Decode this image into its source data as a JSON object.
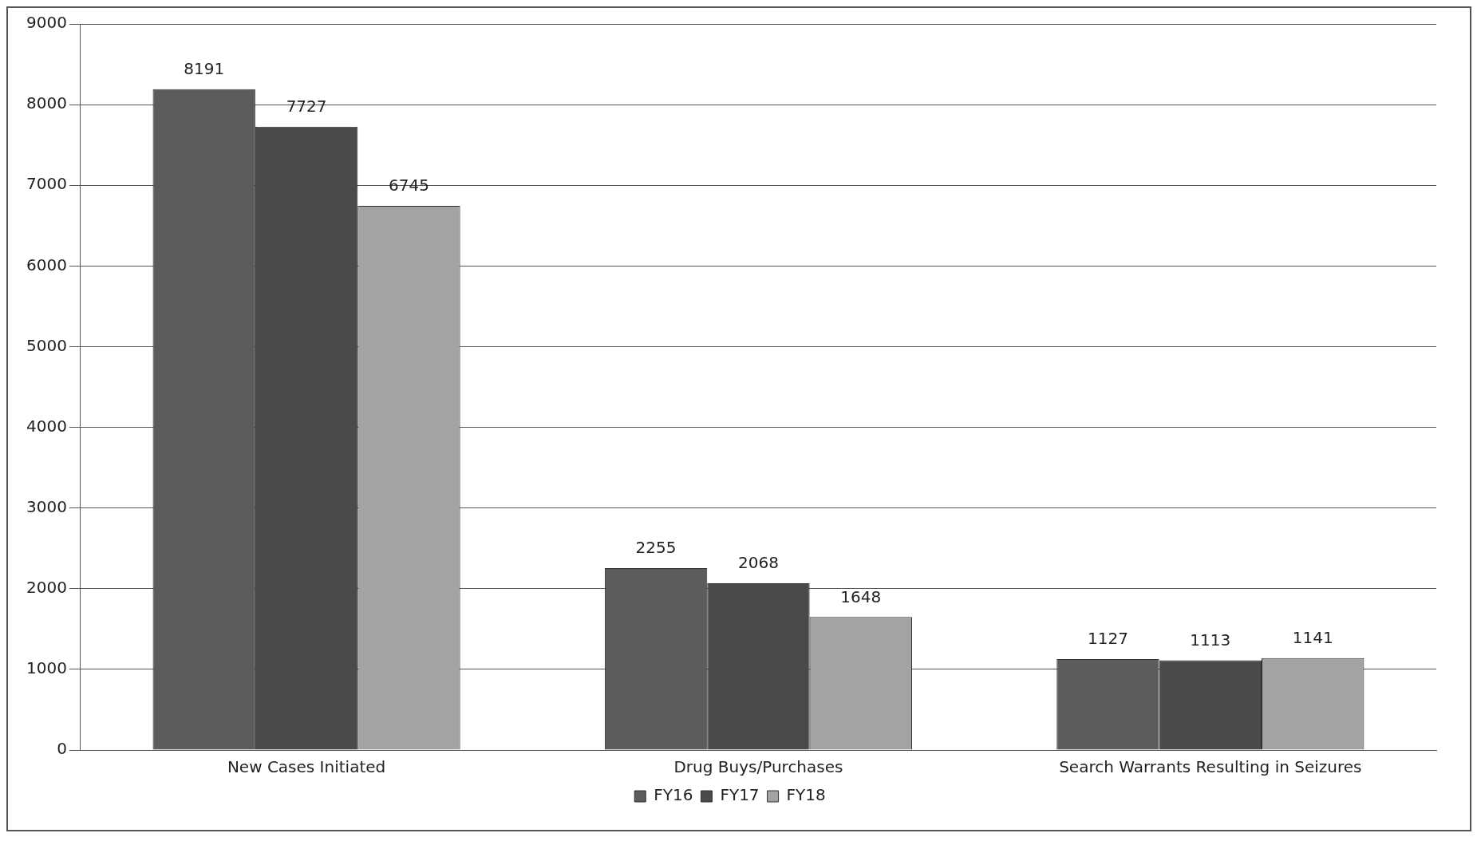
{
  "chart_data": {
    "type": "bar",
    "categories": [
      "New Cases Initiated",
      "Drug Buys/Purchases",
      "Search Warrants Resulting in Seizures"
    ],
    "series": [
      {
        "name": "FY16",
        "color": "#5c5c5c",
        "values": [
          8191,
          2255,
          1127
        ]
      },
      {
        "name": "FY17",
        "color": "#4a4a4a",
        "values": [
          7727,
          2068,
          1113
        ]
      },
      {
        "name": "FY18",
        "color": "#a3a3a3",
        "values": [
          6745,
          1648,
          1141
        ]
      }
    ],
    "ylim": [
      0,
      9000
    ],
    "yticks": [
      0,
      1000,
      2000,
      3000,
      4000,
      5000,
      6000,
      7000,
      8000,
      9000
    ],
    "grid": "y",
    "legend": "bottom",
    "data_labels": true
  }
}
